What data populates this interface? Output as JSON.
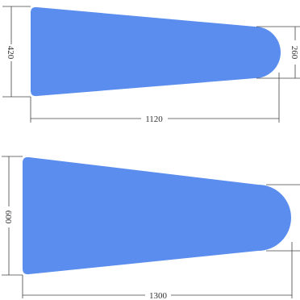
{
  "colors": {
    "shape_fill": "#5b8def",
    "dimension_line": "#444444",
    "dimension_text": "#333333"
  },
  "figure_top": {
    "dim_left_height": "420",
    "dim_right_height": "260",
    "dim_bottom_length": "1120"
  },
  "figure_bottom": {
    "dim_left_height": "600",
    "dim_bottom_length": "1300"
  }
}
